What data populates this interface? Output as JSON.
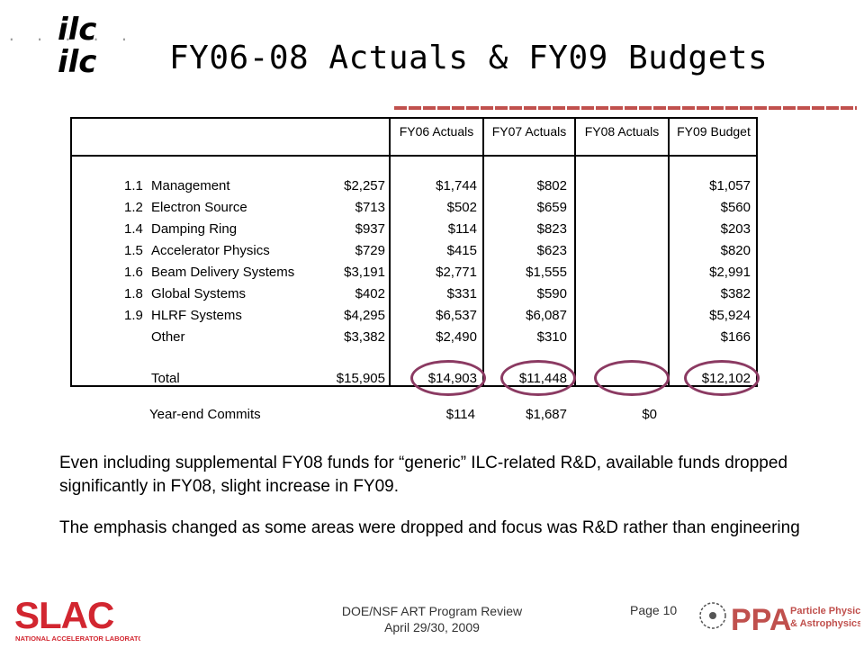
{
  "header": {
    "logo_text": "ilc",
    "title": "FY06-08 Actuals & FY09 Budgets"
  },
  "table": {
    "columns": [
      "FY06 Actuals",
      "FY07 Actuals",
      "FY08 Actuals",
      "FY09 Budget"
    ],
    "rows": [
      {
        "num": "1.1",
        "label": "Management",
        "values": [
          "$2,257",
          "$1,744",
          "$802",
          "$1,057"
        ]
      },
      {
        "num": "1.2",
        "label": "Electron Source",
        "values": [
          "$713",
          "$502",
          "$659",
          "$560"
        ]
      },
      {
        "num": "1.4",
        "label": "Damping Ring",
        "values": [
          "$937",
          "$114",
          "$823",
          "$203"
        ]
      },
      {
        "num": "1.5",
        "label": "Accelerator Physics",
        "values": [
          "$729",
          "$415",
          "$623",
          "$820"
        ]
      },
      {
        "num": "1.6",
        "label": "Beam Delivery Systems",
        "values": [
          "$3,191",
          "$2,771",
          "$1,555",
          "$2,991"
        ]
      },
      {
        "num": "1.8",
        "label": "Global Systems",
        "values": [
          "$402",
          "$331",
          "$590",
          "$382"
        ]
      },
      {
        "num": "1.9",
        "label": "HLRF Systems",
        "values": [
          "$4,295",
          "$6,537",
          "$6,087",
          "$5,924"
        ]
      },
      {
        "num": "",
        "label": "Other",
        "values": [
          "$3,382",
          "$2,490",
          "$310",
          "$166"
        ]
      }
    ],
    "total": {
      "label": "Total",
      "values": [
        "$15,905",
        "$14,903",
        "$11,448",
        "$12,102"
      ]
    },
    "commits": {
      "label": "Year-end Commits",
      "values": [
        "$114",
        "$1,687",
        "$0"
      ]
    }
  },
  "body": {
    "para1": "Even including supplemental FY08 funds for “generic” ILC-related R&D, available funds dropped significantly in FY08, slight increase in FY09.",
    "para2": "The emphasis changed as some areas were dropped and focus was R&D rather than engineering"
  },
  "footer": {
    "slac_logo_text": "SLAC",
    "slac_subtext": "NATIONAL ACCELERATOR LABORATORY",
    "center_line1": "DOE/NSF ART Program Review",
    "center_line2": "April 29/30, 2009",
    "page": "Page 10",
    "ppa_logo_text": "PPA",
    "ppa_line1": "Particle Physics",
    "ppa_line2": "& Astrophysics"
  },
  "colors": {
    "oval": "#8b3a62",
    "rule": "#c0504d",
    "slac_red": "#d22630"
  }
}
